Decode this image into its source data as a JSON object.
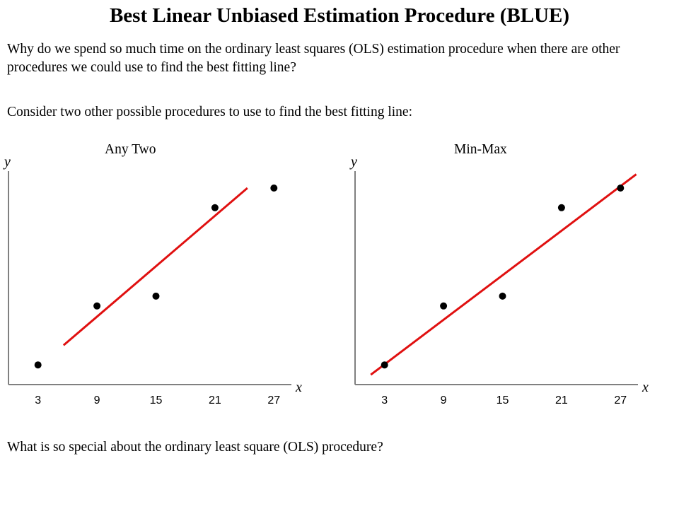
{
  "page": {
    "title": "Best Linear Unbiased Estimation Procedure (BLUE)",
    "para1": "Why do we spend so much time on the ordinary least squares (OLS) estimation procedure when there are other procedures we could use to find the best fitting line?",
    "para2": "Consider two other possible procedures to use to find the best fitting line:",
    "para3": "What is so special about the ordinary least square (OLS) procedure?"
  },
  "colors": {
    "fit_line": "#e01010",
    "points": "#000000",
    "axis": "#808080"
  },
  "chart_data": [
    {
      "type": "scatter",
      "title": "Any Two",
      "xlabel": "x",
      "ylabel": "y",
      "x_ticks": [
        3,
        9,
        15,
        21,
        27
      ],
      "xlim": [
        0,
        30
      ],
      "ylim": [
        0,
        10
      ],
      "grid": false,
      "points": [
        {
          "x": 3,
          "y": 1.0
        },
        {
          "x": 9,
          "y": 4.0
        },
        {
          "x": 15,
          "y": 4.5
        },
        {
          "x": 21,
          "y": 9.0
        },
        {
          "x": 27,
          "y": 10.0
        }
      ],
      "fit_line": {
        "x1": 5.6,
        "y1": 2.0,
        "x2": 24.3,
        "y2": 10.0
      }
    },
    {
      "type": "scatter",
      "title": "Min-Max",
      "xlabel": "x",
      "ylabel": "y",
      "x_ticks": [
        3,
        9,
        15,
        21,
        27
      ],
      "xlim": [
        0,
        30
      ],
      "ylim": [
        0,
        10
      ],
      "grid": false,
      "points": [
        {
          "x": 3,
          "y": 1.0
        },
        {
          "x": 9,
          "y": 4.0
        },
        {
          "x": 15,
          "y": 4.5
        },
        {
          "x": 21,
          "y": 9.0
        },
        {
          "x": 27,
          "y": 10.0
        }
      ],
      "fit_line": {
        "x1": 1.6,
        "y1": 0.5,
        "x2": 28.6,
        "y2": 10.7
      }
    }
  ]
}
